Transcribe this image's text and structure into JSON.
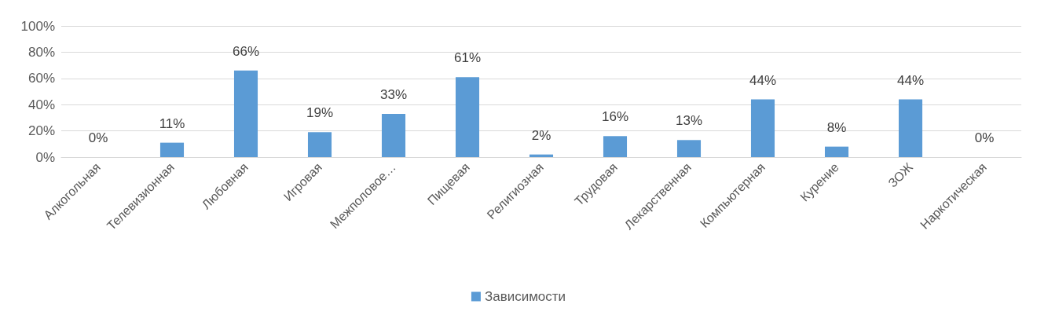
{
  "chart_data": {
    "type": "bar",
    "categories": [
      "Алкогольная",
      "Телевизионная",
      "Любовная",
      "Игровая",
      "Межполовое…",
      "Пищевая",
      "Религиозная",
      "Трудовая",
      "Лекарственная",
      "Компьютерная",
      "Курение",
      "ЗОЖ",
      "Наркотическая"
    ],
    "series": [
      {
        "name": "Зависимости",
        "color": "#5b9bd5",
        "values": [
          0,
          11,
          66,
          19,
          33,
          61,
          2,
          16,
          13,
          44,
          8,
          44,
          0
        ],
        "value_labels": [
          "0%",
          "11%",
          "66%",
          "19%",
          "33%",
          "61%",
          "2%",
          "16%",
          "13%",
          "44%",
          "8%",
          "44%",
          "0%"
        ]
      }
    ],
    "ylim": [
      0,
      100
    ],
    "yticks": [
      {
        "value": 0,
        "label": "0%"
      },
      {
        "value": 20,
        "label": "20%"
      },
      {
        "value": 40,
        "label": "40%"
      },
      {
        "value": 60,
        "label": "60%"
      },
      {
        "value": 80,
        "label": "80%"
      },
      {
        "value": 100,
        "label": "100%"
      }
    ],
    "grid": "y",
    "legend": "bottom"
  }
}
